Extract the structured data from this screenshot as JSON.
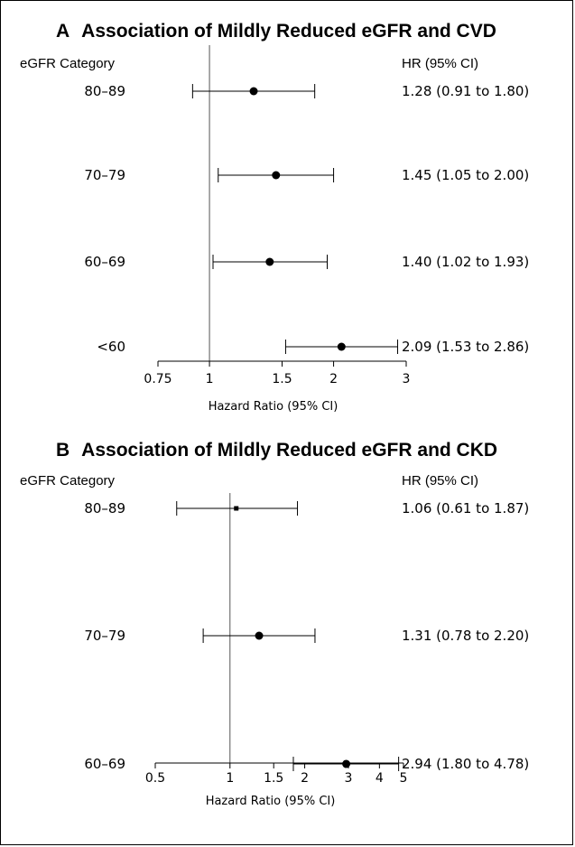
{
  "chart_data": [
    {
      "type": "forest",
      "panel_letter": "A",
      "title": "Association of Mildly Reduced eGFR and CVD",
      "left_header": "eGFR Category",
      "right_header": "HR (95% CI)",
      "xlabel": "Hazard Ratio (95% CI)",
      "xscale": "log",
      "xlim": [
        0.75,
        3
      ],
      "reference_line": 1,
      "xticks": [
        {
          "value": 0.75,
          "label": "0.75"
        },
        {
          "value": 1,
          "label": "1"
        },
        {
          "value": 1.5,
          "label": "1.5"
        },
        {
          "value": 2,
          "label": "2"
        },
        {
          "value": 3,
          "label": "3"
        }
      ],
      "rows": [
        {
          "category": "80–89",
          "hr": 1.28,
          "lower": 0.91,
          "upper": 1.8,
          "label": "1.28 (0.91 to 1.80)"
        },
        {
          "category": "70–79",
          "hr": 1.45,
          "lower": 1.05,
          "upper": 2.0,
          "label": "1.45 (1.05 to 2.00)"
        },
        {
          "category": "60–69",
          "hr": 1.4,
          "lower": 1.02,
          "upper": 1.93,
          "label": "1.40 (1.02 to 1.93)"
        },
        {
          "category": "<60",
          "hr": 2.09,
          "lower": 1.53,
          "upper": 2.86,
          "label": "2.09 (1.53 to 2.86)"
        }
      ]
    },
    {
      "type": "forest",
      "panel_letter": "B",
      "title": "Association of Mildly Reduced eGFR and CKD",
      "left_header": "eGFR Category",
      "right_header": "HR (95% CI)",
      "xlabel": "Hazard Ratio (95% CI)",
      "xscale": "log",
      "xlim": [
        0.5,
        5
      ],
      "reference_line": 1,
      "xticks": [
        {
          "value": 0.5,
          "label": "0.5"
        },
        {
          "value": 1,
          "label": "1"
        },
        {
          "value": 1.5,
          "label": "1.5"
        },
        {
          "value": 2,
          "label": "2"
        },
        {
          "value": 3,
          "label": "3"
        },
        {
          "value": 4,
          "label": "4"
        },
        {
          "value": 5,
          "label": "5"
        }
      ],
      "rows": [
        {
          "category": "80–89",
          "hr": 1.06,
          "lower": 0.61,
          "upper": 1.87,
          "label": "1.06 (0.61 to 1.87)",
          "marker": "square"
        },
        {
          "category": "70–79",
          "hr": 1.31,
          "lower": 0.78,
          "upper": 2.2,
          "label": "1.31 (0.78 to 2.20)"
        },
        {
          "category": "60–69",
          "hr": 2.94,
          "lower": 1.8,
          "upper": 4.78,
          "label": "2.94 (1.80 to 4.78)"
        }
      ]
    }
  ]
}
